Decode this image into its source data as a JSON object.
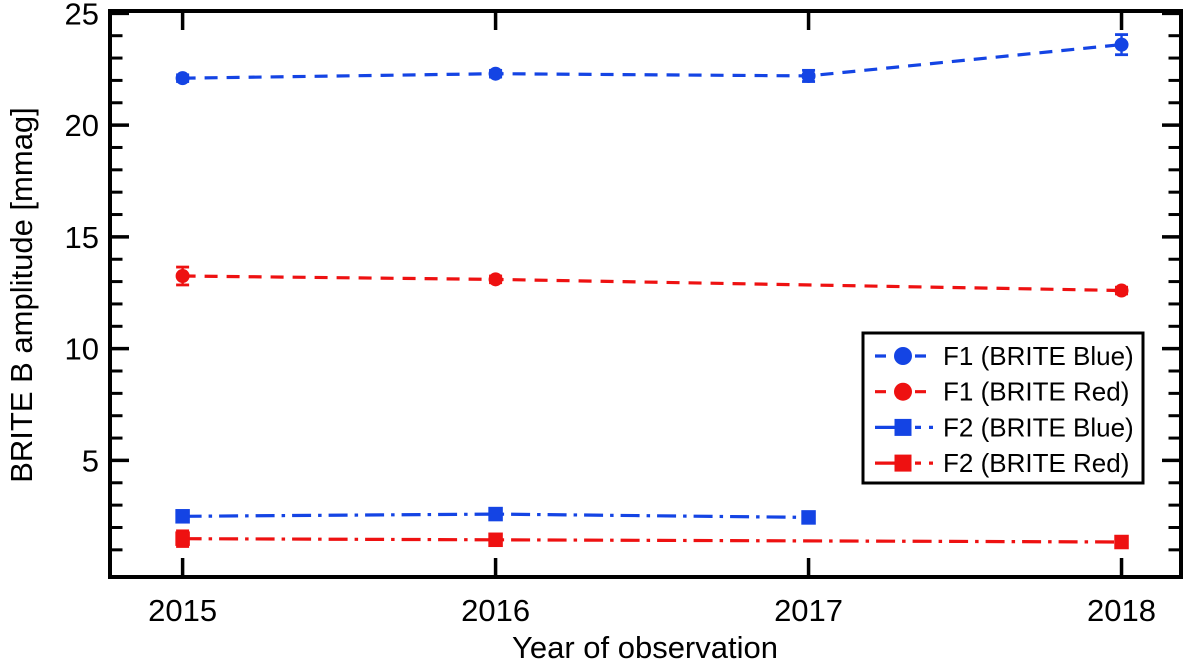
{
  "figure": {
    "background": "#ffffff",
    "frame_color": "#000000",
    "text_color": "#000000"
  },
  "chart_data": {
    "type": "line",
    "title": "",
    "xlabel": "Year of observation",
    "ylabel": "BRITE B amplitude [mmag]",
    "xlim": [
      2014.768,
      2018.19
    ],
    "ylim": [
      -0.215,
      25.105
    ],
    "grid": false,
    "x_ticks": [
      {
        "value": 2015,
        "label": "2015"
      },
      {
        "value": 2016,
        "label": "2016"
      },
      {
        "value": 2017,
        "label": "2017"
      },
      {
        "value": 2018,
        "label": "2018"
      }
    ],
    "y_major_ticks": [
      {
        "value": 5,
        "label": "5"
      },
      {
        "value": 10,
        "label": "10"
      },
      {
        "value": 15,
        "label": "15"
      },
      {
        "value": 20,
        "label": "20"
      },
      {
        "value": 25,
        "label": "25"
      }
    ],
    "y_minor_ticks": [
      1,
      2,
      3,
      4,
      6,
      7,
      8,
      9,
      11,
      12,
      13,
      14,
      16,
      17,
      18,
      19,
      21,
      22,
      23,
      24
    ],
    "legend": {
      "position": "right-center",
      "border_color": "#000000",
      "background": "#ffffff"
    },
    "series": [
      {
        "name": "F1 (BRITE Blue)",
        "color": "#1444e4",
        "marker": "circle",
        "line_style": "dashed",
        "points": [
          {
            "x": 2015,
            "y": 22.1,
            "err": 0.15
          },
          {
            "x": 2016,
            "y": 22.3,
            "err": 0.15
          },
          {
            "x": 2017,
            "y": 22.2,
            "err": 0.25
          },
          {
            "x": 2018,
            "y": 23.6,
            "err": 0.45
          }
        ]
      },
      {
        "name": "F1 (BRITE Red)",
        "color": "#ee1111",
        "marker": "circle",
        "line_style": "dashed",
        "points": [
          {
            "x": 2015,
            "y": 13.25,
            "err": 0.4
          },
          {
            "x": 2016,
            "y": 13.1,
            "err": 0.15
          },
          {
            "x": 2018,
            "y": 12.6,
            "err": 0.15
          }
        ]
      },
      {
        "name": "F2 (BRITE Blue)",
        "color": "#1444e4",
        "marker": "square",
        "line_style": "dashdot",
        "points": [
          {
            "x": 2015,
            "y": 2.5,
            "err": 0.25
          },
          {
            "x": 2016,
            "y": 2.6,
            "err": 0.15
          },
          {
            "x": 2017,
            "y": 2.45,
            "err": 0.25
          }
        ]
      },
      {
        "name": "F2 (BRITE Red)",
        "color": "#ee1111",
        "marker": "square",
        "line_style": "dashdot",
        "points": [
          {
            "x": 2015,
            "y": 1.5,
            "err": 0.35
          },
          {
            "x": 2016,
            "y": 1.45,
            "err": 0.2
          },
          {
            "x": 2018,
            "y": 1.35,
            "err": 0.2
          }
        ]
      }
    ]
  }
}
